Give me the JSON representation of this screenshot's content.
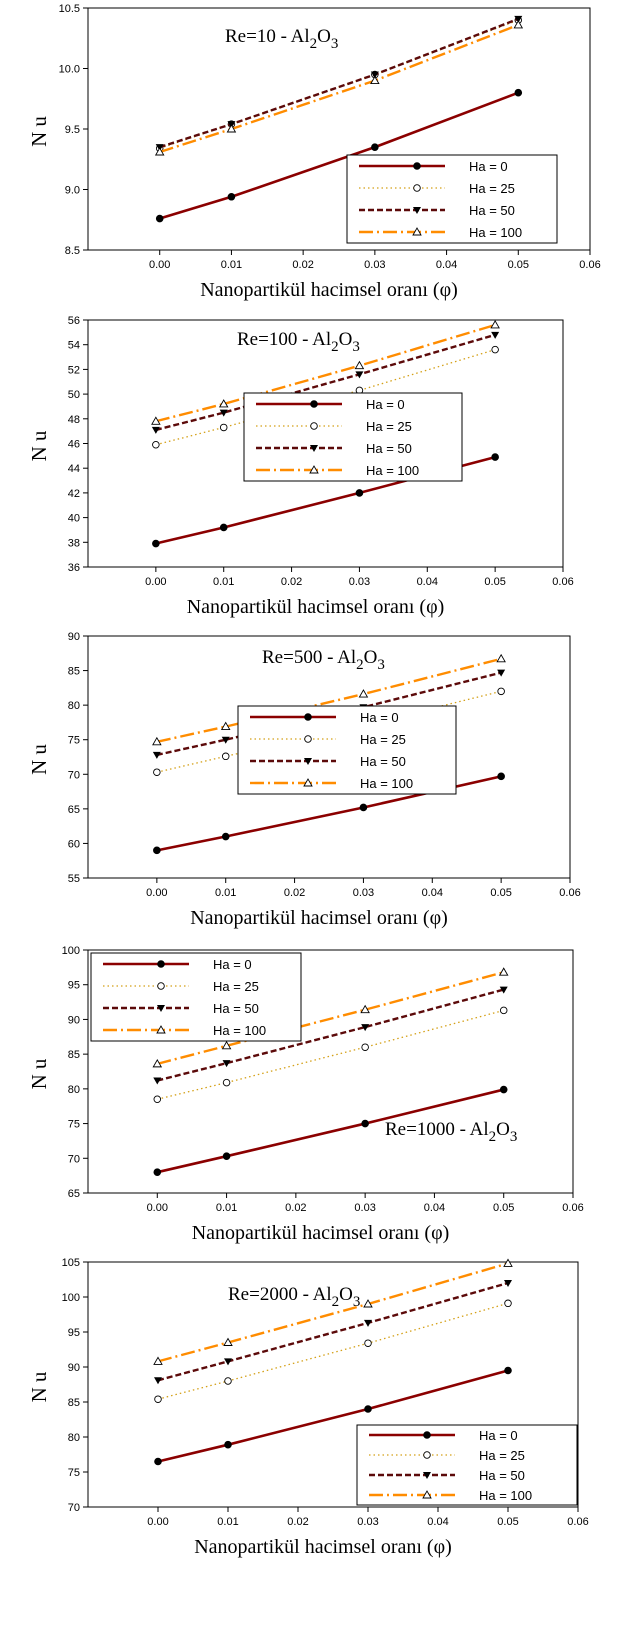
{
  "colors": {
    "ha0": "#8b0000",
    "ha25": "#d4a017",
    "ha50": "#5c0a0a",
    "ha100": "#ff8c00"
  },
  "chart_data": [
    {
      "type": "line",
      "title": "Re=10 - Al2O3",
      "title_parts": {
        "base": "Re=10 - Al",
        "sub1": "2",
        "mid": "O",
        "sub2": "3"
      },
      "xlabel": "Nanopartikül hacimsel oranı (φ)",
      "ylabel": "Nu",
      "xlim": [
        -0.01,
        0.06
      ],
      "ylim": [
        8.5,
        10.5
      ],
      "xticks": [
        "0.00",
        "0.01",
        "0.02",
        "0.03",
        "0.04",
        "0.05",
        "0.06"
      ],
      "yticks": [
        "8.5",
        "9.0",
        "9.5",
        "10.0",
        "10.5"
      ],
      "legend_position": "bottom-right",
      "x": [
        0.0,
        0.01,
        0.03,
        0.05
      ],
      "series": [
        {
          "name": "Ha = 0",
          "values": [
            8.76,
            8.94,
            9.35,
            9.8
          ]
        },
        {
          "name": "Ha = 25",
          "values": [
            9.34,
            9.54,
            9.95,
            10.4
          ]
        },
        {
          "name": "Ha = 50",
          "values": [
            9.35,
            9.54,
            9.95,
            10.41
          ]
        },
        {
          "name": "Ha = 100",
          "values": [
            9.31,
            9.5,
            9.9,
            10.36
          ]
        }
      ]
    },
    {
      "type": "line",
      "title": "Re=100 - Al2O3",
      "title_parts": {
        "base": "Re=100 - Al",
        "sub1": "2",
        "mid": "O",
        "sub2": "3"
      },
      "xlabel": "Nanopartikül hacimsel oranı (φ)",
      "ylabel": "Nu",
      "xlim": [
        -0.01,
        0.06
      ],
      "ylim": [
        36,
        56
      ],
      "xticks": [
        "0.00",
        "0.01",
        "0.02",
        "0.03",
        "0.04",
        "0.05",
        "0.06"
      ],
      "yticks": [
        "36",
        "38",
        "40",
        "42",
        "44",
        "46",
        "48",
        "50",
        "52",
        "54",
        "56"
      ],
      "legend_position": "center",
      "x": [
        0.0,
        0.01,
        0.03,
        0.05
      ],
      "series": [
        {
          "name": "Ha = 0",
          "values": [
            37.9,
            39.2,
            42.0,
            44.9
          ]
        },
        {
          "name": "Ha = 25",
          "values": [
            45.9,
            47.3,
            50.3,
            53.6
          ]
        },
        {
          "name": "Ha = 50",
          "values": [
            47.1,
            48.5,
            51.6,
            54.8
          ]
        },
        {
          "name": "Ha = 100",
          "values": [
            47.8,
            49.2,
            52.3,
            55.6
          ]
        }
      ]
    },
    {
      "type": "line",
      "title": "Re=500 - Al2O3",
      "title_parts": {
        "base": "Re=500 - Al",
        "sub1": "2",
        "mid": "O",
        "sub2": "3"
      },
      "xlabel": "Nanopartikül hacimsel oranı (φ)",
      "ylabel": "Nu",
      "xlim": [
        -0.01,
        0.06
      ],
      "ylim": [
        55,
        90
      ],
      "xticks": [
        "0.00",
        "0.01",
        "0.02",
        "0.03",
        "0.04",
        "0.05",
        "0.06"
      ],
      "yticks": [
        "55",
        "60",
        "65",
        "70",
        "75",
        "80",
        "85",
        "90"
      ],
      "legend_position": "center",
      "x": [
        0.0,
        0.01,
        0.03,
        0.05
      ],
      "series": [
        {
          "name": "Ha = 0",
          "values": [
            59.0,
            61.0,
            65.2,
            69.7
          ]
        },
        {
          "name": "Ha = 25",
          "values": [
            70.3,
            72.6,
            77.1,
            82.0
          ]
        },
        {
          "name": "Ha = 50",
          "values": [
            72.8,
            75.0,
            79.7,
            84.7
          ]
        },
        {
          "name": "Ha = 100",
          "values": [
            74.7,
            76.9,
            81.6,
            86.7
          ]
        }
      ]
    },
    {
      "type": "line",
      "title": "Re=1000 - Al2O3",
      "title_parts": {
        "base": "Re=1000 - Al",
        "sub1": "2",
        "mid": "O",
        "sub2": "3"
      },
      "xlabel": "Nanopartikül hacimsel oranı (φ)",
      "ylabel": "Nu",
      "xlim": [
        -0.01,
        0.06
      ],
      "ylim": [
        65,
        100
      ],
      "xticks": [
        "0.00",
        "0.01",
        "0.02",
        "0.03",
        "0.04",
        "0.05",
        "0.06"
      ],
      "yticks": [
        "65",
        "70",
        "75",
        "80",
        "85",
        "90",
        "95",
        "100"
      ],
      "legend_position": "top-left",
      "x": [
        0.0,
        0.01,
        0.03,
        0.05
      ],
      "series": [
        {
          "name": "Ha = 0",
          "values": [
            68.0,
            70.3,
            75.0,
            79.9
          ]
        },
        {
          "name": "Ha = 25",
          "values": [
            78.5,
            80.9,
            86.0,
            91.3
          ]
        },
        {
          "name": "Ha = 50",
          "values": [
            81.2,
            83.7,
            88.9,
            94.3
          ]
        },
        {
          "name": "Ha = 100",
          "values": [
            83.6,
            86.2,
            91.4,
            96.8
          ]
        }
      ]
    },
    {
      "type": "line",
      "title": "Re=2000 - Al2O3",
      "title_parts": {
        "base": "Re=2000 - Al",
        "sub1": "2",
        "mid": "O",
        "sub2": "3"
      },
      "xlabel": "Nanopartikül hacimsel oranı (φ)",
      "ylabel": "Nu",
      "xlim": [
        -0.01,
        0.06
      ],
      "ylim": [
        70,
        105
      ],
      "xticks": [
        "0.00",
        "0.01",
        "0.02",
        "0.03",
        "0.04",
        "0.05",
        "0.06"
      ],
      "yticks": [
        "70",
        "75",
        "80",
        "85",
        "90",
        "95",
        "100",
        "105"
      ],
      "legend_position": "bottom-right",
      "x": [
        0.0,
        0.01,
        0.03,
        0.05
      ],
      "series": [
        {
          "name": "Ha = 0",
          "values": [
            76.5,
            78.9,
            84.0,
            89.5
          ]
        },
        {
          "name": "Ha = 25",
          "values": [
            85.4,
            88.0,
            93.4,
            99.1
          ]
        },
        {
          "name": "Ha = 50",
          "values": [
            88.1,
            90.8,
            96.3,
            102.0
          ]
        },
        {
          "name": "Ha = 100",
          "values": [
            90.8,
            93.5,
            99.0,
            104.8
          ]
        }
      ]
    }
  ]
}
